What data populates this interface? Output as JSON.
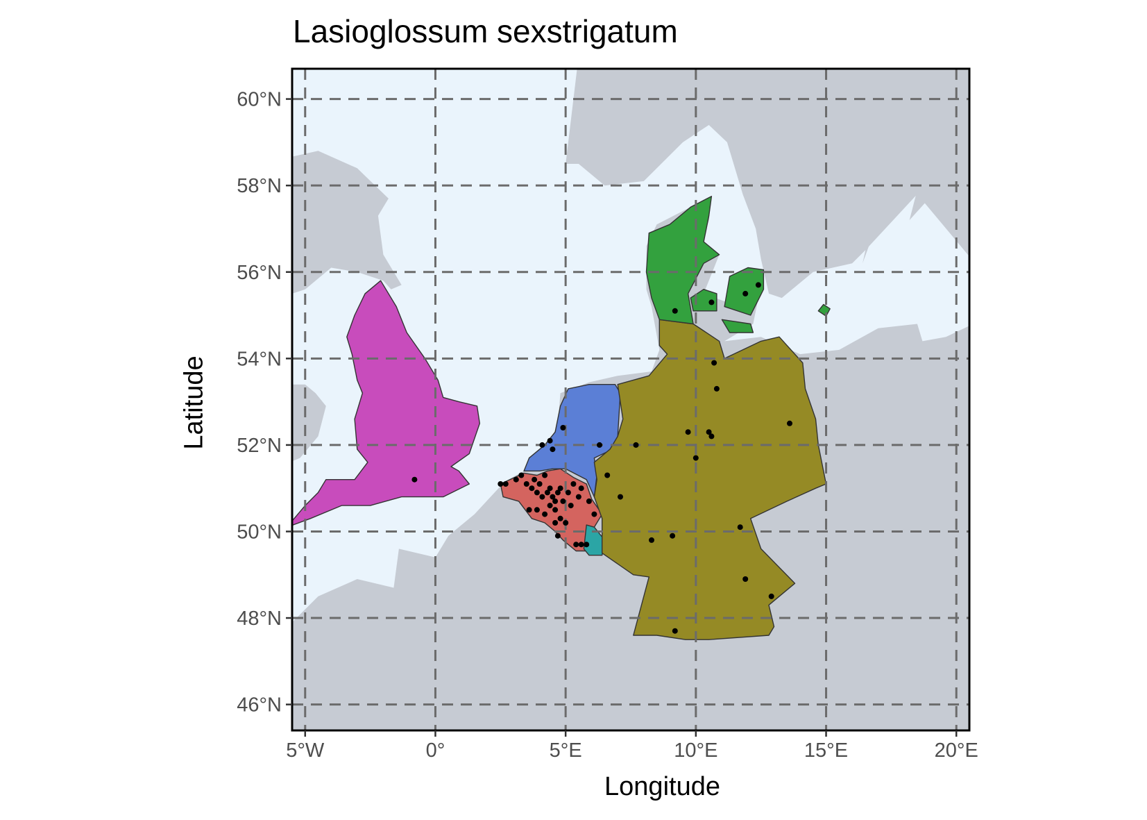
{
  "title": "Lasioglossum sexstrigatum",
  "xlabel": "Longitude",
  "ylabel": "Latitude",
  "x_ticks": [
    {
      "value": -5,
      "label": "5°W"
    },
    {
      "value": 0,
      "label": "0°"
    },
    {
      "value": 5,
      "label": "5°E"
    },
    {
      "value": 10,
      "label": "10°E"
    },
    {
      "value": 15,
      "label": "15°E"
    },
    {
      "value": 20,
      "label": "20°E"
    }
  ],
  "y_ticks": [
    {
      "value": 46,
      "label": "46°N"
    },
    {
      "value": 48,
      "label": "48°N"
    },
    {
      "value": 50,
      "label": "50°N"
    },
    {
      "value": 52,
      "label": "52°N"
    },
    {
      "value": 54,
      "label": "54°N"
    },
    {
      "value": 56,
      "label": "56°N"
    },
    {
      "value": 58,
      "label": "58°N"
    },
    {
      "value": 60,
      "label": "60°N"
    }
  ],
  "colors": {
    "sea": "#eaf4fc",
    "land": "#c6cbd3",
    "grid": "#6b6b6b",
    "england": "#c84cbc",
    "netherlands": "#5b7fd6",
    "belgium": "#d4645f",
    "luxembourg": "#2ba5a5",
    "germany": "#958a25",
    "denmark": "#33a13e",
    "points": "#000000"
  },
  "chart_data": {
    "type": "map",
    "xlim": [
      -5.5,
      20.5
    ],
    "ylim": [
      45.4,
      60.7
    ],
    "grid": true,
    "regions": [
      "England",
      "Netherlands",
      "Belgium",
      "Luxembourg",
      "Germany",
      "Denmark"
    ],
    "occurrences": [
      [
        -0.8,
        51.2
      ],
      [
        2.5,
        51.1
      ],
      [
        2.7,
        51.1
      ],
      [
        3.1,
        51.2
      ],
      [
        3.3,
        51.3
      ],
      [
        3.5,
        51.1
      ],
      [
        3.7,
        51.0
      ],
      [
        3.8,
        51.2
      ],
      [
        3.9,
        50.9
      ],
      [
        4.0,
        51.1
      ],
      [
        4.1,
        50.8
      ],
      [
        4.2,
        51.3
      ],
      [
        4.3,
        50.9
      ],
      [
        4.4,
        51.0
      ],
      [
        4.5,
        50.8
      ],
      [
        4.6,
        50.7
      ],
      [
        4.7,
        50.9
      ],
      [
        4.8,
        51.0
      ],
      [
        4.4,
        50.6
      ],
      [
        4.6,
        50.5
      ],
      [
        4.9,
        50.7
      ],
      [
        5.1,
        50.9
      ],
      [
        5.3,
        51.1
      ],
      [
        5.5,
        50.8
      ],
      [
        5.6,
        51.0
      ],
      [
        5.2,
        50.6
      ],
      [
        3.6,
        50.5
      ],
      [
        3.9,
        50.5
      ],
      [
        4.2,
        50.4
      ],
      [
        4.8,
        50.3
      ],
      [
        5.0,
        50.2
      ],
      [
        4.6,
        50.2
      ],
      [
        4.7,
        49.9
      ],
      [
        5.4,
        49.7
      ],
      [
        5.6,
        49.7
      ],
      [
        5.8,
        49.7
      ],
      [
        5.9,
        50.7
      ],
      [
        6.1,
        50.4
      ],
      [
        4.1,
        52.0
      ],
      [
        4.4,
        52.1
      ],
      [
        4.5,
        51.9
      ],
      [
        4.9,
        52.4
      ],
      [
        6.3,
        52.0
      ],
      [
        6.6,
        51.3
      ],
      [
        7.1,
        50.8
      ],
      [
        7.7,
        52.0
      ],
      [
        8.3,
        49.8
      ],
      [
        9.2,
        47.7
      ],
      [
        9.1,
        49.9
      ],
      [
        9.2,
        55.1
      ],
      [
        9.7,
        52.3
      ],
      [
        10.0,
        51.7
      ],
      [
        10.5,
        52.3
      ],
      [
        10.6,
        52.2
      ],
      [
        10.6,
        55.3
      ],
      [
        10.7,
        53.9
      ],
      [
        10.8,
        53.3
      ],
      [
        11.7,
        50.1
      ],
      [
        11.9,
        48.9
      ],
      [
        11.9,
        55.5
      ],
      [
        12.4,
        55.7
      ],
      [
        12.9,
        48.5
      ],
      [
        13.6,
        52.5
      ]
    ]
  }
}
